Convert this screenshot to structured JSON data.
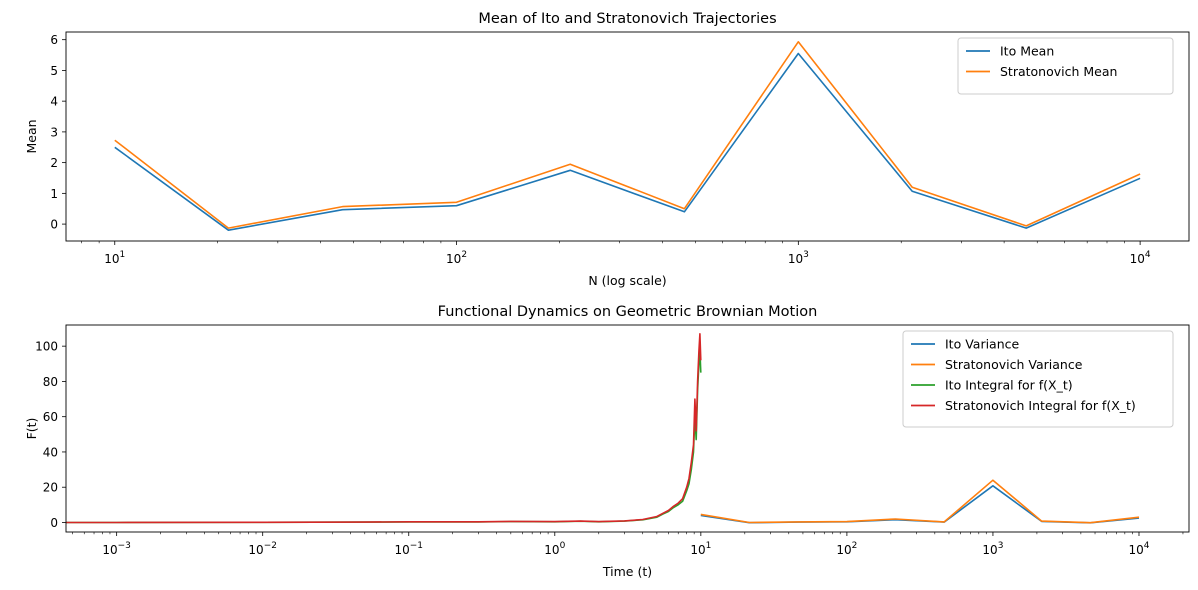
{
  "chart_data": [
    {
      "type": "line",
      "title": "Mean of Ito and Stratonovich Trajectories",
      "xlabel": "N (log scale)",
      "ylabel": "Mean",
      "xscale": "log",
      "xlim": [
        7.2,
        13900
      ],
      "ylim": [
        -0.55,
        6.25
      ],
      "x_tick_labels": [
        "10^1",
        "10^2",
        "10^3",
        "10^4"
      ],
      "y_ticks": [
        0,
        1,
        2,
        3,
        4,
        5,
        6
      ],
      "legend_position": "top-right",
      "x": [
        10,
        21.5,
        46.4,
        100,
        215,
        464,
        1000,
        2154,
        4642,
        10000
      ],
      "series": [
        {
          "name": "Ito Mean",
          "color": "#1f77b4",
          "values": [
            2.5,
            -0.2,
            0.47,
            0.6,
            1.75,
            0.4,
            5.55,
            1.07,
            -0.13,
            1.49
          ]
        },
        {
          "name": "Stratonovich Mean",
          "color": "#ff7f0e",
          "values": [
            2.73,
            -0.13,
            0.57,
            0.71,
            1.95,
            0.5,
            5.93,
            1.2,
            -0.06,
            1.63
          ]
        }
      ],
      "grid": false
    },
    {
      "type": "line",
      "title": "Functional Dynamics on Geometric Brownian Motion",
      "xlabel": "Time (t)",
      "ylabel": "F(t)",
      "xscale": "log",
      "xlim": [
        0.00045,
        22000
      ],
      "ylim": [
        -5.4,
        112
      ],
      "x_tick_labels": [
        "10^−3",
        "10^−2",
        "10^−1",
        "10^0",
        "10^1",
        "10^2",
        "10^3",
        "10^4"
      ],
      "y_ticks": [
        0,
        20,
        40,
        60,
        80,
        100
      ],
      "legend_position": "top-right",
      "grid": false,
      "series": [
        {
          "name": "Ito Variance",
          "color": "#1f77b4",
          "x": [
            10,
            21.5,
            46.4,
            100,
            215,
            464,
            1000,
            2154,
            4642,
            10000
          ],
          "values": [
            4.0,
            -0.1,
            0.2,
            0.4,
            1.6,
            0.2,
            20.8,
            0.6,
            -0.2,
            2.5
          ]
        },
        {
          "name": "Stratonovich Variance",
          "color": "#ff7f0e",
          "x": [
            10,
            21.5,
            46.4,
            100,
            215,
            464,
            1000,
            2154,
            4642,
            10000
          ],
          "values": [
            4.6,
            0.0,
            0.3,
            0.5,
            2.0,
            0.3,
            24.0,
            0.8,
            -0.1,
            3.0
          ]
        },
        {
          "name": "Ito Integral for f(X_t)",
          "color": "#2ca02c",
          "x": [
            0.00045,
            0.001,
            0.01,
            0.05,
            0.1,
            0.3,
            0.5,
            1,
            1.5,
            2,
            3,
            4,
            5,
            5.5,
            6,
            6.5,
            7,
            7.5,
            8,
            8.3,
            8.6,
            8.9,
            9.1,
            9.3,
            9.5,
            9.7,
            9.85,
            10
          ],
          "values": [
            0.0,
            0.0,
            0.1,
            0.2,
            0.3,
            0.3,
            0.5,
            0.4,
            0.7,
            0.4,
            0.8,
            1.5,
            3.0,
            4.8,
            6.2,
            8.5,
            10.0,
            12.0,
            18.0,
            22.0,
            30.0,
            40.0,
            60.0,
            47.0,
            75.0,
            90.0,
            98.0,
            85.0
          ]
        },
        {
          "name": "Stratonovich Integral for f(X_t)",
          "color": "#d62728",
          "x": [
            0.00045,
            0.001,
            0.01,
            0.05,
            0.1,
            0.3,
            0.5,
            1,
            1.5,
            2,
            3,
            4,
            5,
            5.5,
            6,
            6.5,
            7,
            7.5,
            8,
            8.3,
            8.6,
            8.9,
            9.1,
            9.3,
            9.5,
            9.7,
            9.85,
            10
          ],
          "values": [
            0.0,
            0.0,
            0.1,
            0.2,
            0.4,
            0.4,
            0.6,
            0.5,
            0.8,
            0.5,
            0.9,
            1.7,
            3.4,
            5.2,
            6.8,
            9.2,
            11.0,
            13.5,
            20.0,
            25.0,
            34.0,
            44.0,
            70.0,
            52.0,
            80.0,
            97.0,
            107.0,
            92.0
          ]
        }
      ]
    }
  ]
}
